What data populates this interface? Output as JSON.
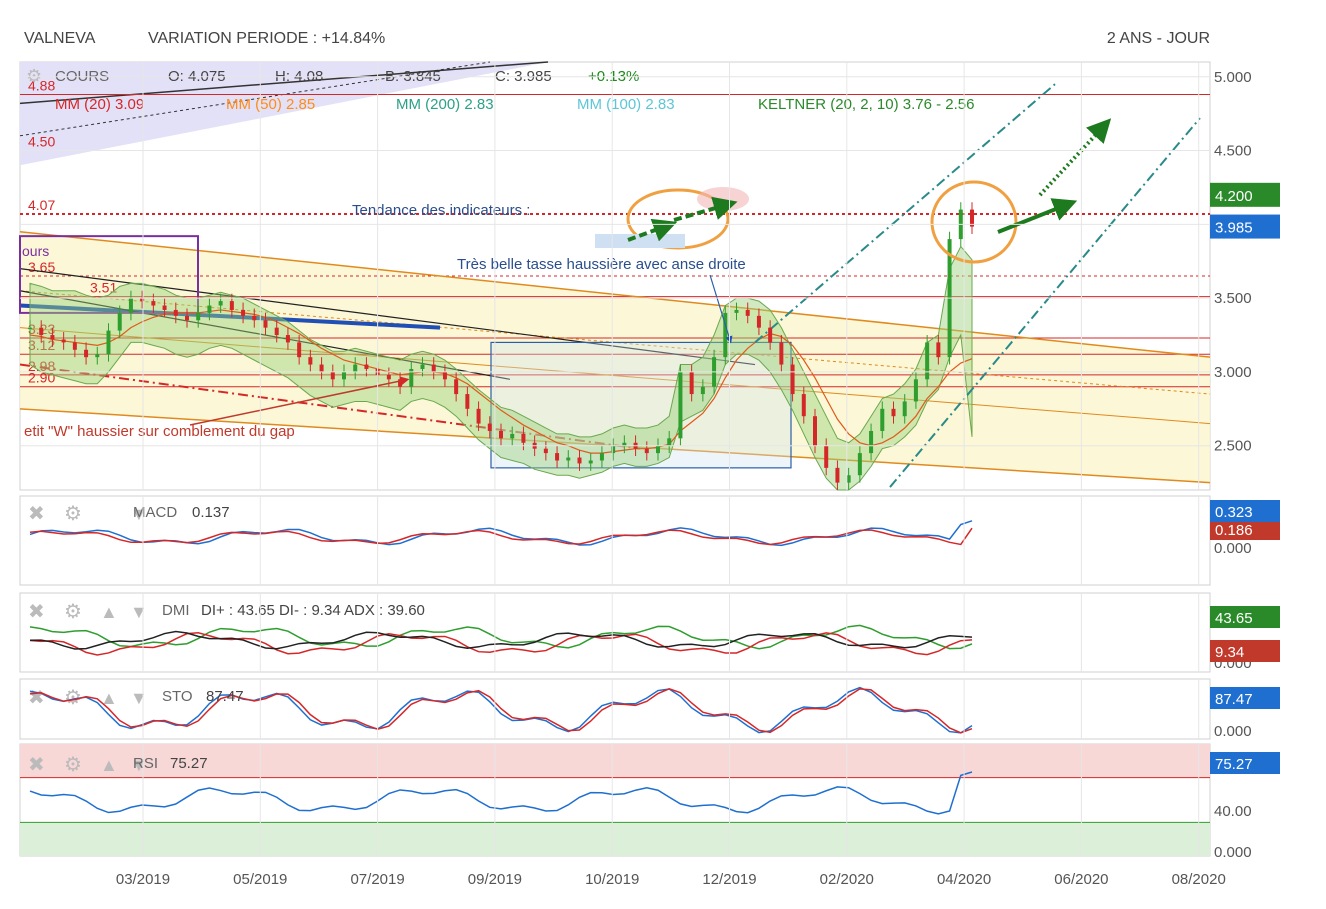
{
  "header": {
    "ticker": "VALNEVA",
    "variation": "VARIATION PERIODE : +14.84%",
    "period": "2 ANS - JOUR"
  },
  "legend": {
    "cours": "COURS",
    "open": "O: 4.075",
    "high": "H: 4.08",
    "low": "B: 3.845",
    "close": "C: 3.985",
    "change": "+0.13%",
    "mm20": "MM (20) 3.09",
    "mm50": "MM (50) 2.85",
    "mm200": "MM (200) 2.83",
    "mm100": "MM (100) 2.83",
    "keltner": "KELTNER (20, 2, 10) 3.76 - 2.56"
  },
  "annotations": {
    "trend": "Tendance des indicateurs :",
    "cup": "Très belle tasse haussière avec anse droite",
    "w_pattern": "etit \"W\" haussier sur comblement du gap",
    "cours_tag": "ours"
  },
  "level_labels": [
    "4.88",
    "4.50",
    "4.07",
    "3.65",
    "3.51",
    "3.23",
    "3.12",
    "2.98",
    "2.90"
  ],
  "colors": {
    "up": "#2e9e2e",
    "down": "#d62728",
    "grid": "#e6e6e6",
    "axis_text": "#555555",
    "price_badge": "#1f6fd1",
    "high_badge": "#2a8a2a"
  },
  "panels": {
    "macd": {
      "name": "MACD",
      "value": "0.137",
      "badges": [
        "0.323",
        "0.186"
      ],
      "ticks": [
        "0.000"
      ]
    },
    "dmi": {
      "name": "DMI",
      "value": "DI+ : 43.65 DI- : 9.34 ADX : 39.60",
      "badges": [
        "43.65",
        "9.34"
      ],
      "ticks": [
        "0.000"
      ]
    },
    "sto": {
      "name": "STO",
      "value": "87.47",
      "badges": [
        "87.47"
      ],
      "ticks": [
        "0.000"
      ]
    },
    "rsi": {
      "name": "RSI",
      "value": "75.27",
      "badges": [
        "75.27"
      ],
      "ticks": [
        "40.00",
        "0.000"
      ]
    }
  },
  "chart_data": {
    "type": "candlestick",
    "title": "VALNEVA",
    "x_ticks": [
      "03/2019",
      "05/2019",
      "07/2019",
      "09/2019",
      "10/2019",
      "12/2019",
      "02/2020",
      "04/2020",
      "06/2020",
      "08/2020"
    ],
    "y_ticks": [
      "5.000",
      "4.500",
      "4.000",
      "3.500",
      "3.000",
      "2.500"
    ],
    "ylim": [
      2.2,
      5.1
    ],
    "last_price": "3.985",
    "high_badge": "4.200",
    "series_close": [
      3.3,
      3.25,
      3.22,
      3.2,
      3.15,
      3.1,
      3.12,
      3.28,
      3.4,
      3.5,
      3.48,
      3.45,
      3.42,
      3.38,
      3.35,
      3.4,
      3.45,
      3.48,
      3.42,
      3.38,
      3.35,
      3.3,
      3.25,
      3.2,
      3.1,
      3.05,
      3.0,
      2.95,
      3.0,
      3.05,
      3.02,
      2.98,
      2.95,
      2.9,
      3.02,
      3.05,
      3.0,
      2.95,
      2.85,
      2.75,
      2.65,
      2.6,
      2.55,
      2.58,
      2.52,
      2.48,
      2.45,
      2.4,
      2.42,
      2.38,
      2.4,
      2.45,
      2.5,
      2.52,
      2.48,
      2.45,
      2.5,
      2.55,
      3.0,
      2.85,
      2.9,
      3.1,
      3.4,
      3.42,
      3.38,
      3.3,
      3.2,
      3.05,
      2.85,
      2.7,
      2.5,
      2.35,
      2.25,
      2.3,
      2.45,
      2.6,
      2.75,
      2.7,
      2.8,
      2.95,
      3.2,
      3.1,
      3.9,
      4.1,
      3.985
    ],
    "keltner_upper": [
      3.6,
      3.58,
      3.55,
      3.55,
      3.55,
      3.52,
      3.5,
      3.52,
      3.58,
      3.6,
      3.6,
      3.58,
      3.56,
      3.52,
      3.5,
      3.5,
      3.52,
      3.54,
      3.52,
      3.5,
      3.46,
      3.42,
      3.38,
      3.34,
      3.28,
      3.22,
      3.18,
      3.14,
      3.14,
      3.16,
      3.14,
      3.12,
      3.1,
      3.08,
      3.12,
      3.14,
      3.12,
      3.08,
      3.02,
      2.95,
      2.88,
      2.82,
      2.76,
      2.74,
      2.7,
      2.66,
      2.62,
      2.58,
      2.58,
      2.56,
      2.56,
      2.58,
      2.62,
      2.64,
      2.62,
      2.62,
      2.64,
      2.7,
      3.05,
      3.05,
      3.1,
      3.25,
      3.45,
      3.5,
      3.5,
      3.48,
      3.42,
      3.3,
      3.15,
      3.0,
      2.85,
      2.7,
      2.55,
      2.52,
      2.58,
      2.7,
      2.82,
      2.85,
      2.92,
      3.02,
      3.2,
      3.25,
      3.7,
      3.85,
      3.76
    ],
    "keltner_lower": [
      3.05,
      3.0,
      2.98,
      2.96,
      2.94,
      2.92,
      2.92,
      3.0,
      3.1,
      3.2,
      3.2,
      3.18,
      3.16,
      3.12,
      3.1,
      3.12,
      3.16,
      3.18,
      3.16,
      3.12,
      3.08,
      3.04,
      3.0,
      2.96,
      2.9,
      2.84,
      2.8,
      2.76,
      2.78,
      2.8,
      2.8,
      2.78,
      2.76,
      2.74,
      2.8,
      2.82,
      2.8,
      2.76,
      2.7,
      2.62,
      2.54,
      2.48,
      2.42,
      2.4,
      2.38,
      2.34,
      2.32,
      2.3,
      2.3,
      2.28,
      2.3,
      2.32,
      2.36,
      2.38,
      2.36,
      2.36,
      2.38,
      2.42,
      2.66,
      2.7,
      2.74,
      2.85,
      3.05,
      3.12,
      3.12,
      3.08,
      3.0,
      2.88,
      2.74,
      2.58,
      2.42,
      2.28,
      2.2,
      2.2,
      2.26,
      2.36,
      2.48,
      2.5,
      2.56,
      2.64,
      2.8,
      2.88,
      3.1,
      3.25,
      2.56
    ],
    "mm20": [
      3.25,
      3.24,
      3.22,
      3.21,
      3.2,
      3.19,
      3.18,
      3.2,
      3.24,
      3.3,
      3.34,
      3.37,
      3.39,
      3.4,
      3.4,
      3.4,
      3.41,
      3.42,
      3.41,
      3.4,
      3.39,
      3.37,
      3.34,
      3.3,
      3.26,
      3.21,
      3.16,
      3.12,
      3.08,
      3.06,
      3.04,
      3.02,
      3.0,
      2.98,
      2.99,
      3.0,
      3.0,
      2.99,
      2.96,
      2.92,
      2.86,
      2.8,
      2.74,
      2.69,
      2.64,
      2.6,
      2.56,
      2.52,
      2.5,
      2.47,
      2.45,
      2.45,
      2.46,
      2.47,
      2.48,
      2.48,
      2.49,
      2.51,
      2.6,
      2.66,
      2.72,
      2.82,
      2.96,
      3.08,
      3.16,
      3.22,
      3.26,
      3.24,
      3.18,
      3.08,
      2.96,
      2.82,
      2.68,
      2.58,
      2.52,
      2.5,
      2.52,
      2.56,
      2.62,
      2.7,
      2.82,
      2.9,
      3.0,
      3.06,
      3.09
    ]
  }
}
